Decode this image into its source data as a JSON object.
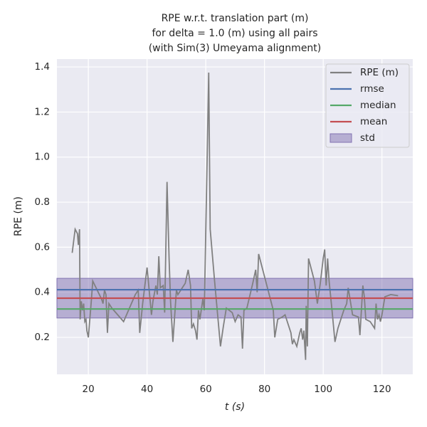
{
  "chart_data": {
    "type": "line",
    "title": [
      "RPE w.r.t. translation part (m)",
      "for delta = 1.0 (m) using all pairs",
      "(with Sim(3) Umeyama alignment)"
    ],
    "x_label": "t (s)",
    "y_label": "RPE (m)",
    "xlim": [
      9.3,
      130.5
    ],
    "ylim": [
      0.036,
      1.435
    ],
    "xticks": [
      20,
      40,
      60,
      80,
      100,
      120
    ],
    "yticks": [
      0.2,
      0.4,
      0.6,
      0.8,
      {
        "value": 1,
        "label": "1.0"
      },
      1.2,
      1.4
    ],
    "grid": true,
    "legend": "upper right",
    "series": [
      {
        "name": "RPE (m)",
        "color": "#808080",
        "x": [
          14.5,
          15.5,
          16.3,
          16.6,
          17,
          17.2,
          17.6,
          18,
          18.4,
          18.8,
          19.2,
          19.5,
          20,
          21,
          21.5,
          23,
          24.5,
          25,
          25.5,
          26,
          26.5,
          27,
          28,
          30,
          32,
          34,
          36,
          37,
          37.5,
          38.5,
          40,
          41.5,
          42,
          43,
          43.5,
          44,
          44.5,
          45.5,
          46,
          46.8,
          47.5,
          48,
          48.8,
          50,
          50.5,
          52,
          53,
          54,
          54.8,
          55.2,
          55.8,
          56.5,
          57,
          57.5,
          58,
          59,
          59.5,
          61,
          61.5,
          63,
          65,
          66,
          67,
          69,
          70,
          71,
          72,
          72.5,
          73,
          74,
          76,
          77,
          77.5,
          78,
          80,
          82,
          83,
          83.5,
          84.5,
          86,
          87,
          89,
          89.5,
          90,
          91,
          92,
          92.5,
          93,
          93.4,
          94,
          94.2,
          94.6,
          95,
          97,
          98,
          99,
          100,
          100.5,
          101,
          101.5,
          102,
          103,
          104,
          105,
          107,
          108,
          108.5,
          110,
          112,
          112.5,
          113.5,
          114,
          114.5,
          116,
          117.5,
          118,
          118.5,
          119,
          119.5,
          120,
          121,
          123,
          125.5
        ],
        "values": [
          0.575,
          0.68,
          0.66,
          0.61,
          0.68,
          0.28,
          0.36,
          0.32,
          0.35,
          0.27,
          0.28,
          0.23,
          0.2,
          0.36,
          0.45,
          0.41,
          0.37,
          0.35,
          0.41,
          0.39,
          0.22,
          0.35,
          0.33,
          0.3,
          0.27,
          0.33,
          0.39,
          0.41,
          0.22,
          0.35,
          0.51,
          0.3,
          0.36,
          0.43,
          0.39,
          0.56,
          0.42,
          0.43,
          0.31,
          0.89,
          0.55,
          0.36,
          0.18,
          0.41,
          0.39,
          0.42,
          0.44,
          0.5,
          0.43,
          0.24,
          0.26,
          0.23,
          0.19,
          0.32,
          0.28,
          0.37,
          0.32,
          1.375,
          0.68,
          0.45,
          0.16,
          0.25,
          0.33,
          0.31,
          0.27,
          0.3,
          0.29,
          0.15,
          0.32,
          0.33,
          0.44,
          0.5,
          0.4,
          0.57,
          0.47,
          0.37,
          0.32,
          0.2,
          0.28,
          0.29,
          0.3,
          0.22,
          0.17,
          0.19,
          0.16,
          0.22,
          0.24,
          0.19,
          0.23,
          0.1,
          0.34,
          0.16,
          0.55,
          0.45,
          0.35,
          0.44,
          0.55,
          0.59,
          0.43,
          0.55,
          0.45,
          0.32,
          0.18,
          0.24,
          0.32,
          0.35,
          0.42,
          0.3,
          0.29,
          0.21,
          0.43,
          0.38,
          0.28,
          0.27,
          0.24,
          0.35,
          0.28,
          0.3,
          0.27,
          0.3,
          0.38,
          0.39,
          0.385
        ]
      }
    ],
    "statistics": [
      {
        "name": "rmse",
        "color": "#4c72b0",
        "value": 0.4116
      },
      {
        "name": "median",
        "color": "#55a868",
        "value": 0.326
      },
      {
        "name": "mean",
        "color": "#c44e52",
        "value": 0.374
      },
      {
        "name": "std",
        "color": "#8172b2",
        "value": 0.088
      }
    ]
  }
}
